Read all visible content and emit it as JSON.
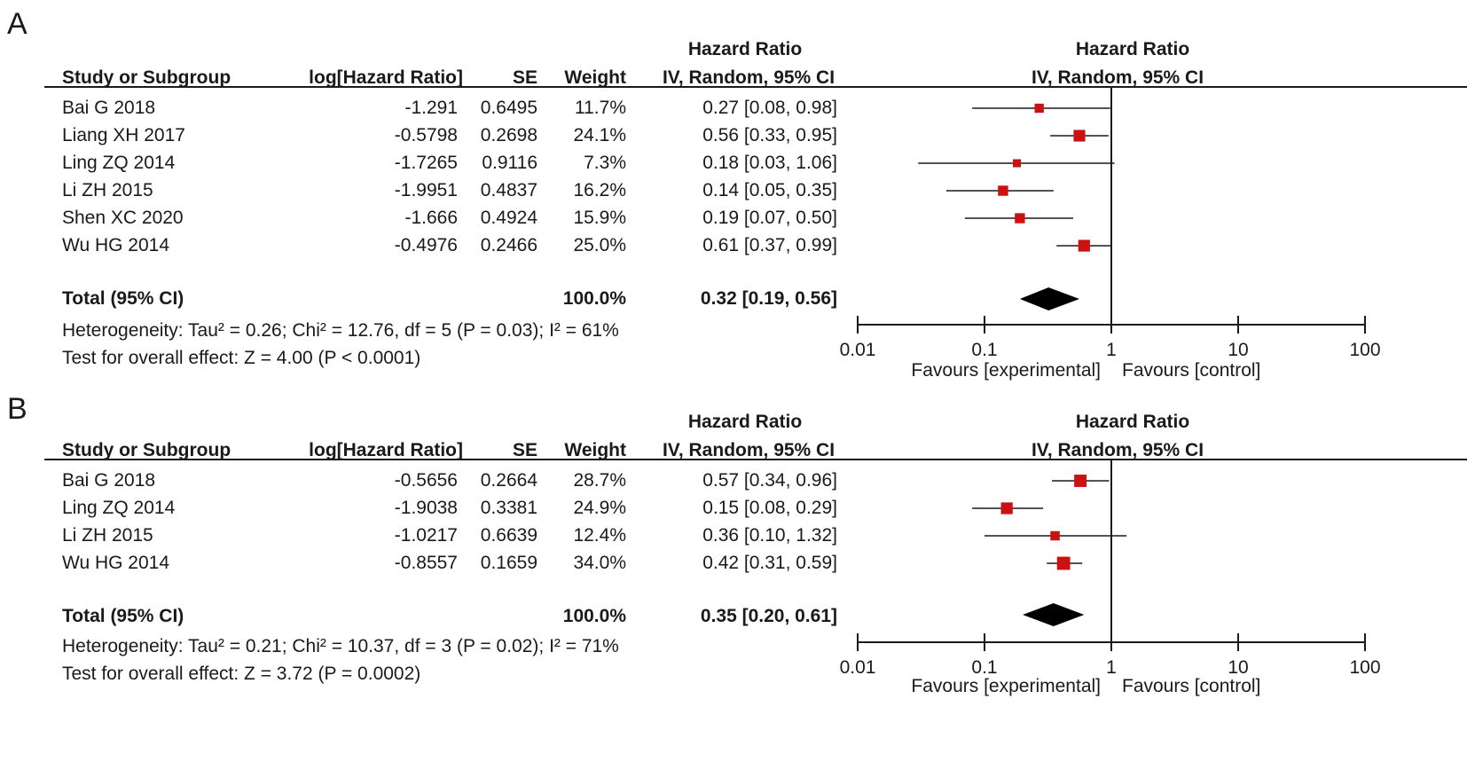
{
  "chart_data": [
    {
      "type": "forest",
      "panel": "A",
      "header": {
        "group_title": "Hazard Ratio",
        "col_study": "Study or Subgroup",
        "col_loghr": "log[Hazard Ratio]",
        "col_se": "SE",
        "col_weight": "Weight",
        "col_ci": "IV, Random, 95% CI",
        "plot_title": "Hazard Ratio",
        "plot_subtitle": "IV, Random, 95% CI"
      },
      "studies": [
        {
          "name": "Bai G 2018",
          "loghr": "-1.291",
          "se": "0.6495",
          "weight": "11.7%",
          "ci_text": "0.27 [0.08, 0.98]",
          "hr": 0.27,
          "lo": 0.08,
          "hi": 0.98,
          "w": 11.7
        },
        {
          "name": "Liang XH 2017",
          "loghr": "-0.5798",
          "se": "0.2698",
          "weight": "24.1%",
          "ci_text": "0.56 [0.33, 0.95]",
          "hr": 0.56,
          "lo": 0.33,
          "hi": 0.95,
          "w": 24.1
        },
        {
          "name": "Ling ZQ 2014",
          "loghr": "-1.7265",
          "se": "0.9116",
          "weight": "7.3%",
          "ci_text": "0.18 [0.03, 1.06]",
          "hr": 0.18,
          "lo": 0.03,
          "hi": 1.06,
          "w": 7.3
        },
        {
          "name": "Li ZH 2015",
          "loghr": "-1.9951",
          "se": "0.4837",
          "weight": "16.2%",
          "ci_text": "0.14 [0.05, 0.35]",
          "hr": 0.14,
          "lo": 0.05,
          "hi": 0.35,
          "w": 16.2
        },
        {
          "name": "Shen XC 2020",
          "loghr": "-1.666",
          "se": "0.4924",
          "weight": "15.9%",
          "ci_text": "0.19 [0.07, 0.50]",
          "hr": 0.19,
          "lo": 0.07,
          "hi": 0.5,
          "w": 15.9
        },
        {
          "name": "Wu HG 2014",
          "loghr": "-0.4976",
          "se": "0.2466",
          "weight": "25.0%",
          "ci_text": "0.61 [0.37, 0.99]",
          "hr": 0.61,
          "lo": 0.37,
          "hi": 0.99,
          "w": 25.0
        }
      ],
      "total": {
        "label": "Total (95% CI)",
        "weight": "100.0%",
        "ci_text": "0.32 [0.19, 0.56]",
        "hr": 0.32,
        "lo": 0.19,
        "hi": 0.56
      },
      "heterogeneity": "Heterogeneity: Tau² = 0.26; Chi² = 12.76, df = 5 (P = 0.03); I² = 61%",
      "overall_effect": "Test for overall effect: Z = 4.00 (P < 0.0001)",
      "axis": {
        "scale": "log",
        "xlim": [
          0.01,
          100
        ],
        "ticks": [
          0.01,
          0.1,
          1,
          10,
          100
        ],
        "tick_labels": [
          "0.01",
          "0.1",
          "1",
          "10",
          "100"
        ]
      },
      "favours_left": "Favours [experimental]",
      "favours_right": "Favours [control]"
    },
    {
      "type": "forest",
      "panel": "B",
      "header": {
        "group_title": "Hazard Ratio",
        "col_study": "Study or Subgroup",
        "col_loghr": "log[Hazard Ratio]",
        "col_se": "SE",
        "col_weight": "Weight",
        "col_ci": "IV, Random, 95% CI",
        "plot_title": "Hazard Ratio",
        "plot_subtitle": "IV, Random, 95% CI"
      },
      "studies": [
        {
          "name": "Bai G 2018",
          "loghr": "-0.5656",
          "se": "0.2664",
          "weight": "28.7%",
          "ci_text": "0.57 [0.34, 0.96]",
          "hr": 0.57,
          "lo": 0.34,
          "hi": 0.96,
          "w": 28.7
        },
        {
          "name": "Ling ZQ 2014",
          "loghr": "-1.9038",
          "se": "0.3381",
          "weight": "24.9%",
          "ci_text": "0.15 [0.08, 0.29]",
          "hr": 0.15,
          "lo": 0.08,
          "hi": 0.29,
          "w": 24.9
        },
        {
          "name": "Li ZH 2015",
          "loghr": "-1.0217",
          "se": "0.6639",
          "weight": "12.4%",
          "ci_text": "0.36 [0.10, 1.32]",
          "hr": 0.36,
          "lo": 0.1,
          "hi": 1.32,
          "w": 12.4
        },
        {
          "name": "Wu HG 2014",
          "loghr": "-0.8557",
          "se": "0.1659",
          "weight": "34.0%",
          "ci_text": "0.42 [0.31, 0.59]",
          "hr": 0.42,
          "lo": 0.31,
          "hi": 0.59,
          "w": 34.0
        }
      ],
      "total": {
        "label": "Total (95% CI)",
        "weight": "100.0%",
        "ci_text": "0.35 [0.20, 0.61]",
        "hr": 0.35,
        "lo": 0.2,
        "hi": 0.61
      },
      "heterogeneity": "Heterogeneity: Tau² = 0.21; Chi² = 10.37, df = 3 (P = 0.02); I² = 71%",
      "overall_effect": "Test for overall effect: Z = 3.72 (P = 0.0002)",
      "axis": {
        "scale": "log",
        "xlim": [
          0.01,
          100
        ],
        "ticks": [
          0.01,
          0.1,
          1,
          10,
          100
        ],
        "tick_labels": [
          "0.01",
          "0.1",
          "1",
          "10",
          "100"
        ]
      },
      "favours_left": "Favours [experimental]",
      "favours_right": "Favours [control]"
    }
  ],
  "panels": {
    "a_label": "A",
    "b_label": "B"
  },
  "colors": {
    "marker": "#cc1111",
    "ink": "#1a1a1a"
  }
}
